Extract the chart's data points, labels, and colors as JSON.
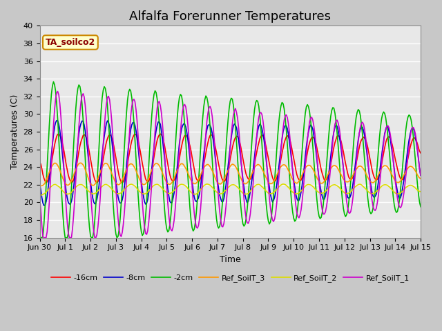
{
  "title": "Alfalfa Forerunner Temperatures",
  "xlabel": "Time",
  "ylabel": "Temperatures (C)",
  "ylim": [
    16,
    40
  ],
  "yticks": [
    16,
    18,
    20,
    22,
    24,
    26,
    28,
    30,
    32,
    34,
    36,
    38,
    40
  ],
  "fig_bg": "#c8c8c8",
  "plot_bg": "#e8e8e8",
  "grid_color": "#ffffff",
  "annotation_text": "TA_soilco2",
  "annotation_color": "#8b0000",
  "annotation_bg": "#ffffcc",
  "annotation_border": "#cc8800",
  "series_colors": {
    "-16cm": "#ff0000",
    "-8cm": "#0000cc",
    "-2cm": "#00bb00",
    "Ref_SoilT_3": "#ff9900",
    "Ref_SoilT_2": "#dddd00",
    "Ref_SoilT_1": "#cc00cc"
  },
  "legend_labels": [
    "-16cm",
    "-8cm",
    "-2cm",
    "Ref_SoilT_3",
    "Ref_SoilT_2",
    "Ref_SoilT_1"
  ],
  "x_tick_labels": [
    "Jun 30",
    "Jul 1",
    "Jul 2",
    "Jul 3",
    "Jul 4",
    "Jul 5",
    "Jul 6",
    "Jul 7",
    "Jul 8",
    "Jul 9",
    "Jul 10",
    "Jul 11",
    "Jul 12",
    "Jul 13",
    "Jul 14",
    "Jul 15"
  ],
  "days": 15,
  "title_fontsize": 13,
  "label_fontsize": 9,
  "tick_fontsize": 8,
  "legend_fontsize": 8,
  "linewidth": 1.2
}
